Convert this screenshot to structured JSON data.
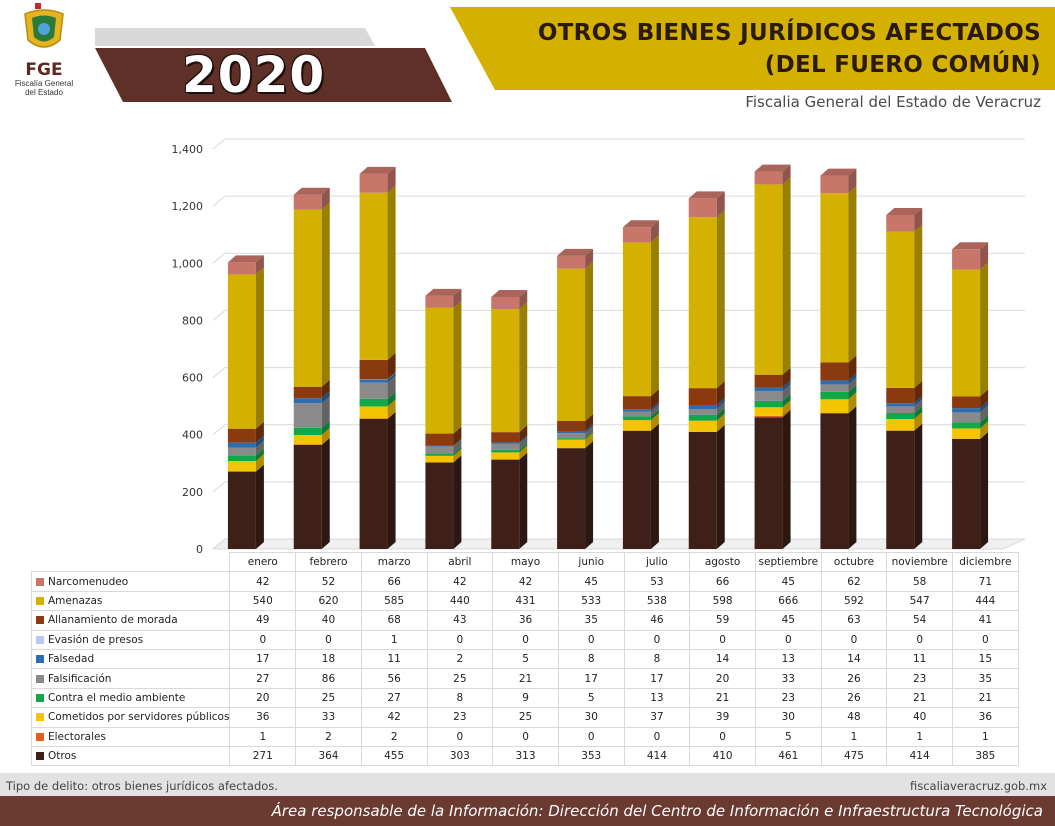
{
  "header": {
    "logo_abbr": "FGE",
    "logo_line1": "Fiscalía General",
    "logo_line2": "del Estado",
    "year": "2020",
    "title_line1": "OTROS BIENES JURÍDICOS AFECTADOS",
    "title_line2": "(DEL FUERO COMÚN)",
    "subtitle": "Fiscalia General del Estado de Veracruz"
  },
  "colors": {
    "gold": "#d4b000",
    "dark_brown": "#5e3028",
    "gray_band": "#d6d6d6"
  },
  "chart_data": {
    "type": "bar",
    "stacked": true,
    "categories": [
      "enero",
      "febrero",
      "marzo",
      "abril",
      "mayo",
      "junio",
      "julio",
      "agosto",
      "septiembre",
      "octubre",
      "noviembre",
      "diciembre"
    ],
    "ylim": [
      0,
      1400
    ],
    "yticks": [
      "0",
      "200",
      "400",
      "600",
      "800",
      "1,000",
      "1,200",
      "1,400"
    ],
    "series": [
      {
        "name": "Narcomenudeo",
        "color": "#c8766a",
        "values": [
          42,
          52,
          66,
          42,
          42,
          45,
          53,
          66,
          45,
          62,
          58,
          71
        ]
      },
      {
        "name": "Amenazas",
        "color": "#d4b000",
        "values": [
          540,
          620,
          585,
          440,
          431,
          533,
          538,
          598,
          666,
          592,
          547,
          444
        ]
      },
      {
        "name": "Allanamiento de morada",
        "color": "#8a3a0e",
        "values": [
          49,
          40,
          68,
          43,
          36,
          35,
          46,
          59,
          45,
          63,
          54,
          41
        ]
      },
      {
        "name": "Evasión de presos",
        "color": "#b9c6ee",
        "values": [
          0,
          0,
          1,
          0,
          0,
          0,
          0,
          0,
          0,
          0,
          0,
          0
        ]
      },
      {
        "name": "Falsedad",
        "color": "#2e6db0",
        "values": [
          17,
          18,
          11,
          2,
          5,
          8,
          8,
          14,
          13,
          14,
          11,
          15
        ]
      },
      {
        "name": "Falsificación",
        "color": "#8a8a8a",
        "values": [
          27,
          86,
          56,
          25,
          21,
          17,
          17,
          20,
          33,
          26,
          23,
          35
        ]
      },
      {
        "name": "Contra el medio ambiente",
        "color": "#12a84a",
        "values": [
          20,
          25,
          27,
          8,
          9,
          5,
          13,
          21,
          23,
          26,
          21,
          21
        ]
      },
      {
        "name": "Cometidos por servidores públicos",
        "color": "#f5c400",
        "values": [
          36,
          33,
          42,
          23,
          25,
          30,
          37,
          39,
          30,
          48,
          40,
          36
        ]
      },
      {
        "name": "Electorales",
        "color": "#e0601a",
        "values": [
          1,
          2,
          2,
          0,
          0,
          0,
          0,
          0,
          5,
          1,
          1,
          1
        ]
      },
      {
        "name": "Otros",
        "color": "#3e2018",
        "values": [
          271,
          364,
          455,
          303,
          313,
          353,
          414,
          410,
          461,
          475,
          414,
          385
        ]
      }
    ]
  },
  "footer": {
    "note": "Tipo de delito: otros bienes jurídicos afectados.",
    "website": "fiscaliaveracruz.gob.mx",
    "responsible": "Área responsable de la Información: Dirección del Centro de Información e Infraestructura Tecnológica"
  }
}
